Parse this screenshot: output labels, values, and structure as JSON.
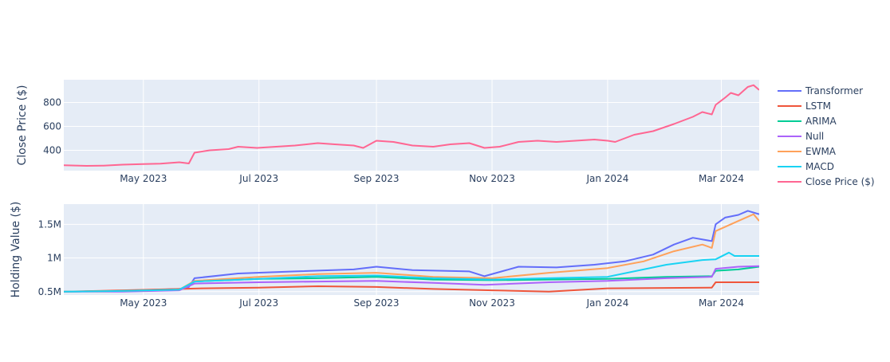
{
  "chart_data": [
    {
      "type": "line",
      "ylabel": "Close Price ($)",
      "ylim": [
        230,
        990
      ],
      "y_ticks": [
        400,
        600,
        800
      ],
      "y_tick_labels": [
        "400",
        "600",
        "800"
      ],
      "x_tick_labels": [
        "May 2023",
        "Jul 2023",
        "Sep 2023",
        "Nov 2023",
        "Jan 2024",
        "Mar 2024"
      ],
      "x_tick_dates": [
        "2023-05-01",
        "2023-07-01",
        "2023-09-01",
        "2023-11-01",
        "2024-01-01",
        "2024-03-01"
      ],
      "xlim": [
        "2023-03-20",
        "2024-03-21"
      ],
      "grid": true,
      "series": [
        {
          "name": "Close Price ($)",
          "color": "#FF6692",
          "points": [
            [
              "2023-03-20",
              275
            ],
            [
              "2023-04-01",
              270
            ],
            [
              "2023-04-10",
              272
            ],
            [
              "2023-04-20",
              280
            ],
            [
              "2023-05-01",
              285
            ],
            [
              "2023-05-10",
              288
            ],
            [
              "2023-05-20",
              300
            ],
            [
              "2023-05-25",
              290
            ],
            [
              "2023-05-28",
              380
            ],
            [
              "2023-06-05",
              400
            ],
            [
              "2023-06-15",
              410
            ],
            [
              "2023-06-20",
              430
            ],
            [
              "2023-06-30",
              420
            ],
            [
              "2023-07-10",
              430
            ],
            [
              "2023-07-20",
              440
            ],
            [
              "2023-08-01",
              460
            ],
            [
              "2023-08-10",
              450
            ],
            [
              "2023-08-20",
              440
            ],
            [
              "2023-08-25",
              420
            ],
            [
              "2023-09-01",
              480
            ],
            [
              "2023-09-10",
              470
            ],
            [
              "2023-09-20",
              440
            ],
            [
              "2023-10-01",
              430
            ],
            [
              "2023-10-10",
              450
            ],
            [
              "2023-10-20",
              460
            ],
            [
              "2023-10-28",
              420
            ],
            [
              "2023-11-05",
              430
            ],
            [
              "2023-11-15",
              470
            ],
            [
              "2023-11-25",
              480
            ],
            [
              "2023-12-05",
              470
            ],
            [
              "2023-12-15",
              480
            ],
            [
              "2023-12-25",
              490
            ],
            [
              "2024-01-01",
              480
            ],
            [
              "2024-01-05",
              470
            ],
            [
              "2024-01-15",
              530
            ],
            [
              "2024-01-25",
              560
            ],
            [
              "2024-02-05",
              620
            ],
            [
              "2024-02-15",
              680
            ],
            [
              "2024-02-20",
              720
            ],
            [
              "2024-02-25",
              700
            ],
            [
              "2024-02-27",
              780
            ],
            [
              "2024-03-03",
              840
            ],
            [
              "2024-03-06",
              880
            ],
            [
              "2024-03-10",
              860
            ],
            [
              "2024-03-15",
              930
            ],
            [
              "2024-03-18",
              945
            ],
            [
              "2024-03-21",
              905
            ]
          ]
        }
      ]
    },
    {
      "type": "line",
      "ylabel": "Holding Value ($)",
      "ylim": [
        450000,
        1800000
      ],
      "y_ticks": [
        500000,
        1000000,
        1500000
      ],
      "y_tick_labels": [
        "0.5M",
        "1M",
        "1.5M"
      ],
      "x_tick_labels": [
        "May 2023",
        "Jul 2023",
        "Sep 2023",
        "Nov 2023",
        "Jan 2024",
        "Mar 2024"
      ],
      "x_tick_dates": [
        "2023-05-01",
        "2023-07-01",
        "2023-09-01",
        "2023-11-01",
        "2024-01-01",
        "2024-03-01"
      ],
      "xlim": [
        "2023-03-20",
        "2024-03-21"
      ],
      "grid": true,
      "legend_position": "right",
      "series": [
        {
          "name": "Transformer",
          "color": "#636EFA",
          "points": [
            [
              "2023-03-20",
              500000
            ],
            [
              "2023-04-20",
              510000
            ],
            [
              "2023-05-20",
              540000
            ],
            [
              "2023-05-25",
              570000
            ],
            [
              "2023-05-28",
              700000
            ],
            [
              "2023-06-20",
              770000
            ],
            [
              "2023-07-20",
              800000
            ],
            [
              "2023-08-20",
              830000
            ],
            [
              "2023-09-01",
              870000
            ],
            [
              "2023-09-20",
              820000
            ],
            [
              "2023-10-20",
              800000
            ],
            [
              "2023-10-28",
              730000
            ],
            [
              "2023-11-15",
              870000
            ],
            [
              "2023-12-05",
              860000
            ],
            [
              "2023-12-25",
              900000
            ],
            [
              "2024-01-10",
              950000
            ],
            [
              "2024-01-25",
              1050000
            ],
            [
              "2024-02-05",
              1200000
            ],
            [
              "2024-02-15",
              1300000
            ],
            [
              "2024-02-25",
              1250000
            ],
            [
              "2024-02-27",
              1500000
            ],
            [
              "2024-03-03",
              1600000
            ],
            [
              "2024-03-10",
              1640000
            ],
            [
              "2024-03-15",
              1700000
            ],
            [
              "2024-03-21",
              1650000
            ]
          ]
        },
        {
          "name": "LSTM",
          "color": "#EF553B",
          "points": [
            [
              "2023-03-20",
              500000
            ],
            [
              "2023-04-20",
              520000
            ],
            [
              "2023-05-20",
              540000
            ],
            [
              "2023-06-01",
              550000
            ],
            [
              "2023-07-01",
              560000
            ],
            [
              "2023-08-01",
              580000
            ],
            [
              "2023-09-01",
              570000
            ],
            [
              "2023-10-01",
              540000
            ],
            [
              "2023-11-01",
              520000
            ],
            [
              "2023-12-01",
              500000
            ],
            [
              "2024-01-01",
              550000
            ],
            [
              "2024-02-25",
              560000
            ],
            [
              "2024-02-27",
              640000
            ],
            [
              "2024-03-21",
              640000
            ]
          ]
        },
        {
          "name": "ARIMA",
          "color": "#00CC96",
          "points": [
            [
              "2023-03-20",
              500000
            ],
            [
              "2023-04-20",
              510000
            ],
            [
              "2023-05-20",
              530000
            ],
            [
              "2023-05-28",
              650000
            ],
            [
              "2023-07-01",
              690000
            ],
            [
              "2023-08-01",
              700000
            ],
            [
              "2023-09-01",
              720000
            ],
            [
              "2023-10-01",
              680000
            ],
            [
              "2023-11-01",
              670000
            ],
            [
              "2023-12-01",
              680000
            ],
            [
              "2024-01-01",
              690000
            ],
            [
              "2024-02-01",
              720000
            ],
            [
              "2024-02-25",
              730000
            ],
            [
              "2024-02-27",
              810000
            ],
            [
              "2024-03-10",
              830000
            ],
            [
              "2024-03-21",
              870000
            ]
          ]
        },
        {
          "name": "Null",
          "color": "#AB63FA",
          "points": [
            [
              "2023-03-20",
              500000
            ],
            [
              "2023-04-20",
              500000
            ],
            [
              "2023-05-20",
              520000
            ],
            [
              "2023-05-28",
              620000
            ],
            [
              "2023-07-01",
              640000
            ],
            [
              "2023-08-01",
              650000
            ],
            [
              "2023-09-01",
              660000
            ],
            [
              "2023-10-01",
              630000
            ],
            [
              "2023-10-28",
              600000
            ],
            [
              "2023-12-01",
              640000
            ],
            [
              "2024-01-01",
              660000
            ],
            [
              "2024-02-01",
              700000
            ],
            [
              "2024-02-25",
              720000
            ],
            [
              "2024-02-27",
              840000
            ],
            [
              "2024-03-10",
              870000
            ],
            [
              "2024-03-21",
              880000
            ]
          ]
        },
        {
          "name": "EWMA",
          "color": "#FFA15A",
          "points": [
            [
              "2023-03-20",
              500000
            ],
            [
              "2023-04-20",
              510000
            ],
            [
              "2023-05-20",
              530000
            ],
            [
              "2023-05-28",
              660000
            ],
            [
              "2023-07-01",
              720000
            ],
            [
              "2023-08-01",
              760000
            ],
            [
              "2023-09-01",
              780000
            ],
            [
              "2023-10-01",
              720000
            ],
            [
              "2023-11-01",
              700000
            ],
            [
              "2023-12-01",
              780000
            ],
            [
              "2024-01-01",
              850000
            ],
            [
              "2024-01-20",
              950000
            ],
            [
              "2024-02-05",
              1100000
            ],
            [
              "2024-02-20",
              1200000
            ],
            [
              "2024-02-25",
              1150000
            ],
            [
              "2024-02-27",
              1400000
            ],
            [
              "2024-03-10",
              1550000
            ],
            [
              "2024-03-18",
              1650000
            ],
            [
              "2024-03-21",
              1550000
            ]
          ]
        },
        {
          "name": "MACD",
          "color": "#19D3F3",
          "points": [
            [
              "2023-03-20",
              500000
            ],
            [
              "2023-04-20",
              510000
            ],
            [
              "2023-05-20",
              530000
            ],
            [
              "2023-05-28",
              650000
            ],
            [
              "2023-07-01",
              690000
            ],
            [
              "2023-08-01",
              730000
            ],
            [
              "2023-09-01",
              740000
            ],
            [
              "2023-10-01",
              700000
            ],
            [
              "2023-11-01",
              680000
            ],
            [
              "2023-12-01",
              700000
            ],
            [
              "2024-01-01",
              720000
            ],
            [
              "2024-02-01",
              900000
            ],
            [
              "2024-02-20",
              970000
            ],
            [
              "2024-02-27",
              980000
            ],
            [
              "2024-03-05",
              1080000
            ],
            [
              "2024-03-08",
              1030000
            ],
            [
              "2024-03-21",
              1030000
            ]
          ]
        }
      ]
    }
  ],
  "legend": [
    {
      "name": "Transformer",
      "color": "#636EFA"
    },
    {
      "name": "LSTM",
      "color": "#EF553B"
    },
    {
      "name": "ARIMA",
      "color": "#00CC96"
    },
    {
      "name": "Null",
      "color": "#AB63FA"
    },
    {
      "name": "EWMA",
      "color": "#FFA15A"
    },
    {
      "name": "MACD",
      "color": "#19D3F3"
    },
    {
      "name": "Close Price ($)",
      "color": "#FF6692"
    }
  ],
  "colors": {
    "plot_background": "#E5ECF6",
    "grid": "#ffffff",
    "text": "#2a3f5f"
  }
}
